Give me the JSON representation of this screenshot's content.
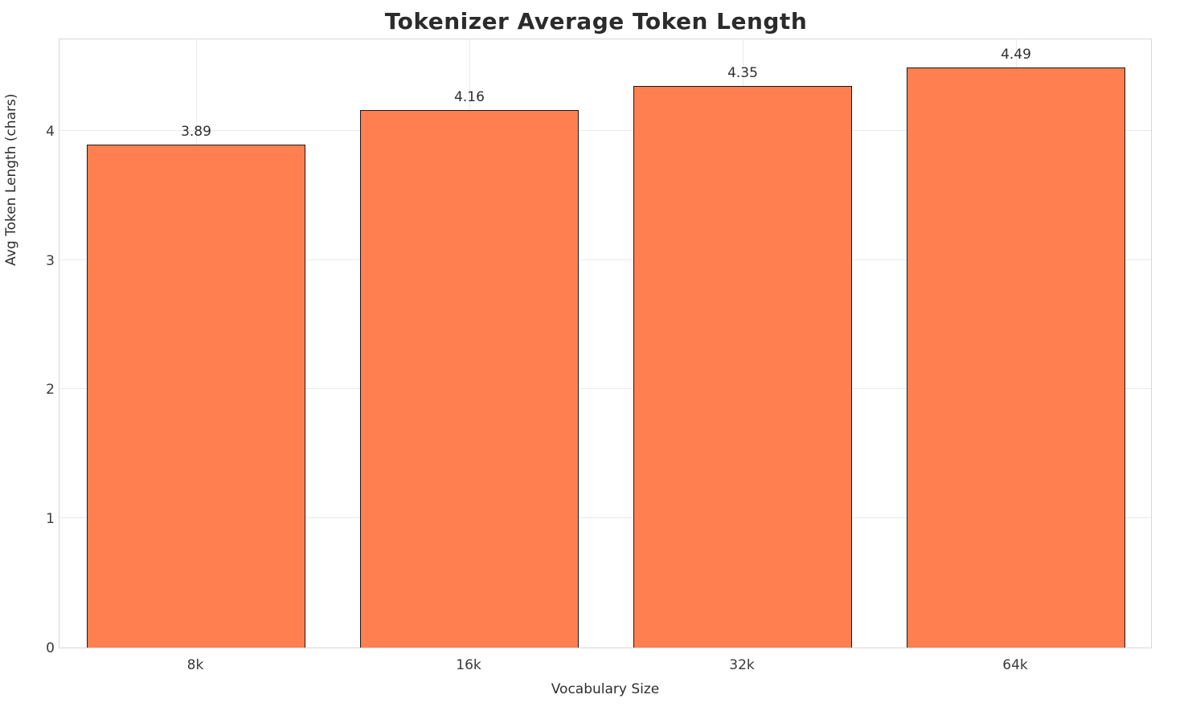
{
  "chart_data": {
    "type": "bar",
    "title": "Tokenizer Average Token Length",
    "xlabel": "Vocabulary Size",
    "ylabel": "Avg Token Length (chars)",
    "categories": [
      "8k",
      "16k",
      "32k",
      "64k"
    ],
    "values": [
      3.89,
      4.16,
      4.35,
      4.49
    ],
    "value_labels": [
      "3.89",
      "4.16",
      "4.35",
      "4.49"
    ],
    "yticks": [
      0,
      1,
      2,
      3,
      4
    ],
    "ytick_labels": [
      "0",
      "1",
      "2",
      "3",
      "4"
    ],
    "ylim": [
      0,
      4.72
    ],
    "grid": true,
    "legend_position": "none",
    "bar_color": "#ff7f50",
    "bar_edge_color": "#1a1a1a",
    "bar_width_fraction": 0.8
  }
}
